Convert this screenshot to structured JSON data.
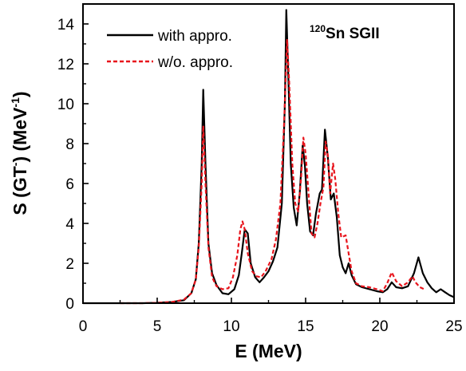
{
  "chart_data": {
    "type": "line",
    "xlabel": "E (MeV)",
    "ylabel": {
      "prefix": "S (GT",
      "sup1": "-",
      "middle": ") (MeV",
      "sup2": "-1",
      "suffix": ")"
    },
    "xlim": [
      0,
      25
    ],
    "ylim": [
      0,
      15
    ],
    "xticks": [
      0,
      5,
      10,
      15,
      20,
      25
    ],
    "yticks": [
      0,
      2,
      4,
      6,
      8,
      10,
      12,
      14
    ],
    "annotation": {
      "sup": "120",
      "text": "Sn SGII"
    },
    "legend_position": "top-left",
    "series": [
      {
        "name": "with appro.",
        "color": "#000000",
        "style": "solid",
        "points": [
          [
            0,
            0
          ],
          [
            2,
            0
          ],
          [
            4,
            0
          ],
          [
            5,
            0.02
          ],
          [
            6,
            0.06
          ],
          [
            6.8,
            0.15
          ],
          [
            7.3,
            0.5
          ],
          [
            7.6,
            1.2
          ],
          [
            7.8,
            3
          ],
          [
            8.0,
            7
          ],
          [
            8.1,
            10.7
          ],
          [
            8.25,
            7
          ],
          [
            8.45,
            3
          ],
          [
            8.7,
            1.5
          ],
          [
            9.0,
            0.9
          ],
          [
            9.4,
            0.5
          ],
          [
            9.8,
            0.45
          ],
          [
            10.2,
            0.7
          ],
          [
            10.5,
            1.4
          ],
          [
            10.7,
            2.5
          ],
          [
            10.9,
            3.7
          ],
          [
            11.1,
            3.5
          ],
          [
            11.3,
            2
          ],
          [
            11.6,
            1.3
          ],
          [
            11.9,
            1.05
          ],
          [
            12.2,
            1.3
          ],
          [
            12.5,
            1.6
          ],
          [
            12.8,
            2.1
          ],
          [
            13.1,
            2.8
          ],
          [
            13.4,
            5
          ],
          [
            13.6,
            10
          ],
          [
            13.7,
            14.7
          ],
          [
            13.85,
            11
          ],
          [
            14.0,
            7
          ],
          [
            14.2,
            4.8
          ],
          [
            14.4,
            3.9
          ],
          [
            14.6,
            5.5
          ],
          [
            14.8,
            7.9
          ],
          [
            14.95,
            6.9
          ],
          [
            15.1,
            5
          ],
          [
            15.3,
            3.6
          ],
          [
            15.5,
            3.4
          ],
          [
            15.7,
            4.5
          ],
          [
            15.95,
            5.5
          ],
          [
            16.1,
            5.7
          ],
          [
            16.3,
            8.7
          ],
          [
            16.5,
            7.3
          ],
          [
            16.7,
            5.2
          ],
          [
            16.9,
            5.5
          ],
          [
            17.1,
            4.3
          ],
          [
            17.3,
            2.4
          ],
          [
            17.5,
            1.8
          ],
          [
            17.7,
            1.5
          ],
          [
            17.9,
            2.0
          ],
          [
            18.1,
            1.4
          ],
          [
            18.4,
            0.95
          ],
          [
            18.8,
            0.8
          ],
          [
            19.3,
            0.7
          ],
          [
            19.8,
            0.6
          ],
          [
            20.2,
            0.55
          ],
          [
            20.5,
            0.7
          ],
          [
            20.8,
            1.05
          ],
          [
            21.1,
            0.8
          ],
          [
            21.5,
            0.75
          ],
          [
            21.9,
            0.85
          ],
          [
            22.3,
            1.5
          ],
          [
            22.6,
            2.3
          ],
          [
            22.9,
            1.5
          ],
          [
            23.2,
            1.05
          ],
          [
            23.5,
            0.75
          ],
          [
            23.8,
            0.55
          ],
          [
            24.1,
            0.7
          ],
          [
            24.4,
            0.55
          ],
          [
            24.7,
            0.4
          ],
          [
            25,
            0.3
          ]
        ]
      },
      {
        "name": "w/o. appro.",
        "color": "#e8141c",
        "style": "dashed",
        "points": [
          [
            2.5,
            0
          ],
          [
            4,
            0
          ],
          [
            5,
            0.02
          ],
          [
            6,
            0.06
          ],
          [
            6.8,
            0.18
          ],
          [
            7.3,
            0.5
          ],
          [
            7.6,
            1.2
          ],
          [
            7.8,
            2.8
          ],
          [
            8.0,
            6
          ],
          [
            8.1,
            8.9
          ],
          [
            8.25,
            6
          ],
          [
            8.45,
            2.8
          ],
          [
            8.7,
            1.3
          ],
          [
            9.0,
            0.85
          ],
          [
            9.4,
            0.7
          ],
          [
            9.8,
            0.75
          ],
          [
            10.1,
            1.3
          ],
          [
            10.4,
            2.4
          ],
          [
            10.6,
            3.7
          ],
          [
            10.75,
            4.1
          ],
          [
            10.9,
            3.7
          ],
          [
            11.1,
            2.5
          ],
          [
            11.4,
            1.6
          ],
          [
            11.7,
            1.35
          ],
          [
            12.0,
            1.3
          ],
          [
            12.3,
            1.6
          ],
          [
            12.7,
            2.2
          ],
          [
            13.0,
            3.2
          ],
          [
            13.3,
            5
          ],
          [
            13.55,
            9
          ],
          [
            13.75,
            13.2
          ],
          [
            13.9,
            11
          ],
          [
            14.1,
            7
          ],
          [
            14.3,
            5
          ],
          [
            14.5,
            4.6
          ],
          [
            14.7,
            6.3
          ],
          [
            14.85,
            8.3
          ],
          [
            15.0,
            7.5
          ],
          [
            15.2,
            5.5
          ],
          [
            15.4,
            3.5
          ],
          [
            15.6,
            3.3
          ],
          [
            15.8,
            4.0
          ],
          [
            16.0,
            5.0
          ],
          [
            16.2,
            5.8
          ],
          [
            16.35,
            8.1
          ],
          [
            16.5,
            7.4
          ],
          [
            16.65,
            5.5
          ],
          [
            16.85,
            7.0
          ],
          [
            17.0,
            6.2
          ],
          [
            17.2,
            4.5
          ],
          [
            17.4,
            3.3
          ],
          [
            17.7,
            3.4
          ],
          [
            17.9,
            2.5
          ],
          [
            18.1,
            1.6
          ],
          [
            18.4,
            1.0
          ],
          [
            18.8,
            0.85
          ],
          [
            19.3,
            0.8
          ],
          [
            19.8,
            0.7
          ],
          [
            20.2,
            0.6
          ],
          [
            20.5,
            1.0
          ],
          [
            20.8,
            1.55
          ],
          [
            21.1,
            1.1
          ],
          [
            21.5,
            0.85
          ],
          [
            21.9,
            1.05
          ],
          [
            22.2,
            1.35
          ],
          [
            22.4,
            1.05
          ],
          [
            22.7,
            0.8
          ],
          [
            23,
            0.7
          ]
        ]
      }
    ]
  }
}
